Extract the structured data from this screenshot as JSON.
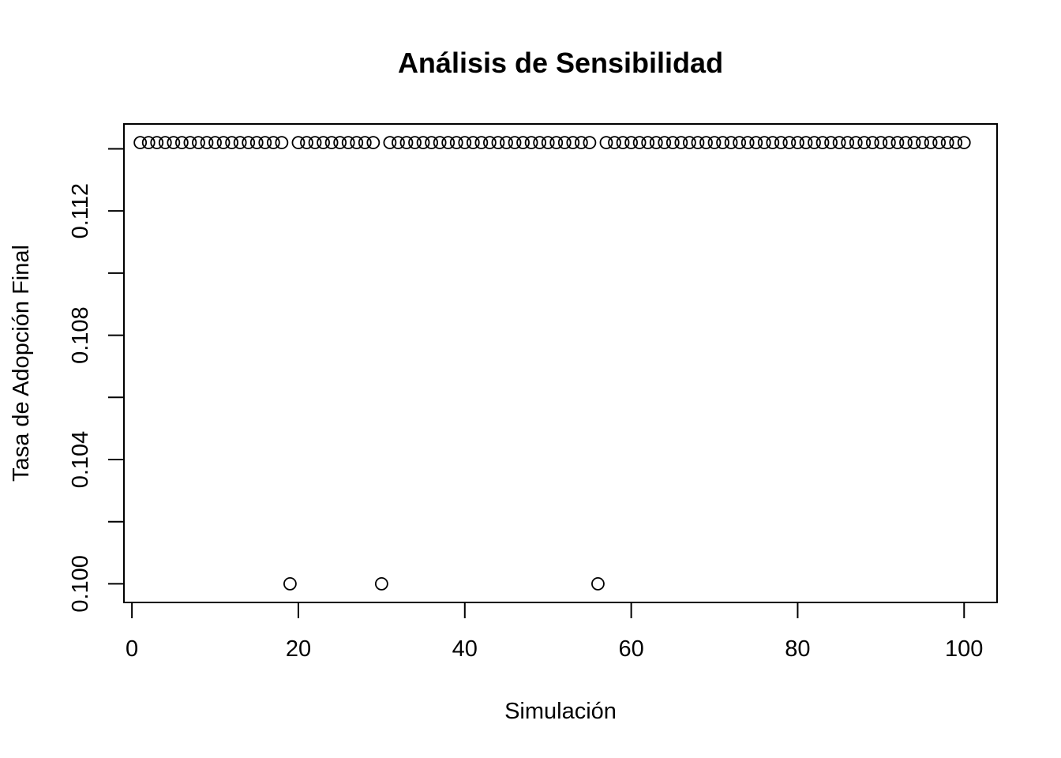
{
  "chart_data": {
    "type": "scatter",
    "title": "Análisis de Sensibilidad",
    "xlabel": "Simulación",
    "ylabel": "Tasa de Adopción Final",
    "xlim": [
      -0.96,
      103.96
    ],
    "ylim": [
      0.0994,
      0.1148
    ],
    "x_ticks": [
      0,
      20,
      40,
      60,
      80,
      100
    ],
    "x_tick_labels": [
      "0",
      "20",
      "40",
      "60",
      "80",
      "100"
    ],
    "y_ticks": [
      0.1,
      0.102,
      0.104,
      0.106,
      0.108,
      0.11,
      0.112,
      0.114
    ],
    "y_tick_labels": [
      "0.100",
      "",
      "0.104",
      "",
      "0.108",
      "",
      "0.112",
      ""
    ],
    "grid": false,
    "legend": "none",
    "marker": "open-circle",
    "color": "#000000",
    "high_value": 0.1142,
    "low_value": 0.1,
    "low_value_x": [
      19,
      30,
      56
    ],
    "x_count": 100
  }
}
